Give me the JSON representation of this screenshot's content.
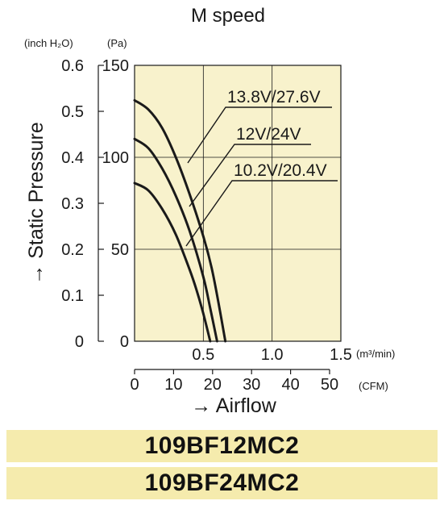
{
  "chart_data": {
    "type": "line",
    "title": "M speed",
    "ylabel": "→ Static Pressure",
    "xlabel": "→ Airflow",
    "y_unit_left": "(inch H₂O)",
    "y_unit_right": "(Pa)",
    "x_unit_top": "(m³/min)",
    "x_unit_bottom": "(CFM)",
    "xlim": [
      0,
      1.5
    ],
    "ylim": [
      0,
      150
    ],
    "x_ticks": [
      "0.5",
      "1.0",
      "1.5"
    ],
    "y_ticks_pa": [
      "0",
      "50",
      "100",
      "150"
    ],
    "y_ticks_inch": [
      "0",
      "0.1",
      "0.2",
      "0.3",
      "0.4",
      "0.5",
      "0.6"
    ],
    "cfm_ticks": [
      "0",
      "10",
      "20",
      "30",
      "40",
      "50"
    ],
    "grid": true,
    "series": [
      {
        "name": "13.8V/27.6V",
        "x": [
          0,
          0.1,
          0.2,
          0.3,
          0.4,
          0.5,
          0.56,
          0.61,
          0.66
        ],
        "y": [
          131,
          126,
          116,
          100,
          80,
          57,
          40,
          21,
          0
        ]
      },
      {
        "name": "12V/24V",
        "x": [
          0,
          0.1,
          0.2,
          0.3,
          0.4,
          0.5,
          0.55,
          0.6
        ],
        "y": [
          110,
          105,
          94,
          79,
          60,
          35,
          18,
          0
        ]
      },
      {
        "name": "10.2V/20.4V",
        "x": [
          0,
          0.1,
          0.2,
          0.3,
          0.4,
          0.45,
          0.5,
          0.55
        ],
        "y": [
          86,
          82,
          72,
          58,
          39,
          28,
          15,
          0
        ]
      }
    ]
  },
  "models": [
    "109BF12MC2",
    "109BF24MC2"
  ],
  "colors": {
    "plot_bg": "#f8f2cc",
    "band_bg": "#f5ebad",
    "curve": "#1a1a1a"
  }
}
